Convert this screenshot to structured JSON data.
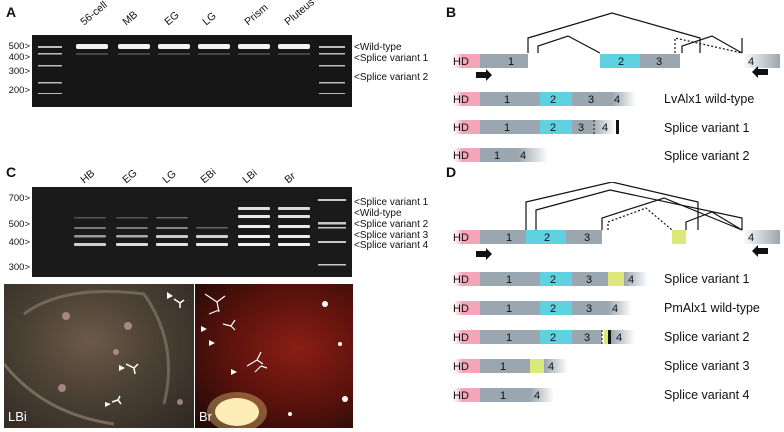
{
  "panels": {
    "a": "A",
    "b": "B",
    "c": "C",
    "d": "D"
  },
  "panel_a": {
    "lanes": [
      "56-cell",
      "MB",
      "EG",
      "LG",
      "Prism",
      "Pluteus"
    ],
    "ladder": [
      "500>",
      "400>",
      "300>",
      "200>"
    ],
    "bands": [
      "<Wild-type",
      "<Splice variant 1",
      "<Splice variant 2"
    ]
  },
  "panel_c": {
    "lanes": [
      "HB",
      "EG",
      "LG",
      "EBi",
      "LBi",
      "Br"
    ],
    "ladder": [
      "700>",
      "500>",
      "400>",
      "300>"
    ],
    "bands": [
      "<Splice variant 1",
      "<Wild-type",
      "<Splice variant 2",
      "<Splice variant 3",
      "<Splice variant 4"
    ],
    "photo_labels": [
      "LBi",
      "Br"
    ]
  },
  "panel_b": {
    "rows": [
      "LvAlx1 wild-type",
      "Splice variant 1",
      "Splice variant 2"
    ],
    "exon_hd": "HD",
    "exons": [
      "1",
      "2",
      "3",
      "4"
    ]
  },
  "panel_d": {
    "rows": [
      "Splice variant 1",
      "PmAlx1 wild-type",
      "Splice variant 2",
      "Splice variant 3",
      "Splice variant 4"
    ],
    "exon_hd": "HD",
    "exons": [
      "1",
      "2",
      "3",
      "4"
    ]
  },
  "colors": {
    "hd": "#f4a6b8",
    "exon_gray": "#9aa7b0",
    "exon_cyan": "#5fd1e0",
    "exon_yellow": "#dde87a"
  }
}
